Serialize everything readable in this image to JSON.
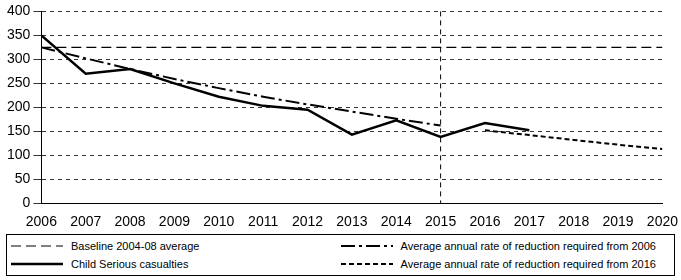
{
  "chart_data": {
    "type": "line",
    "x": [
      2006,
      2007,
      2008,
      2009,
      2010,
      2011,
      2012,
      2013,
      2014,
      2015,
      2016,
      2017,
      2018,
      2019,
      2020
    ],
    "series": [
      {
        "name": "Baseline 2004-08 average",
        "color": "#000000",
        "line_style": "dashed",
        "values": [
          325,
          325,
          325,
          325,
          325,
          325,
          325,
          325,
          325,
          325,
          325,
          325,
          325,
          325,
          325
        ]
      },
      {
        "name": "Average annual rate of reduction required from 2006",
        "color": "#000000",
        "line_style": "dashdot",
        "values": [
          325,
          302,
          280,
          259,
          240,
          222,
          206,
          191,
          176,
          162,
          null,
          null,
          null,
          null,
          null
        ]
      },
      {
        "name": "Child Serious casualties",
        "color": "#000000",
        "line_style": "solid",
        "values": [
          350,
          270,
          280,
          250,
          222,
          203,
          195,
          143,
          173,
          138,
          167,
          152,
          null,
          null,
          null
        ]
      },
      {
        "name": "Average annual rate of reduction required from 2016",
        "color": "#000000",
        "line_style": "dotted",
        "values": [
          null,
          null,
          null,
          null,
          null,
          null,
          null,
          null,
          null,
          null,
          152,
          142,
          132,
          122,
          113
        ]
      }
    ],
    "vline_x": 2015,
    "xlim": [
      2006,
      2020
    ],
    "xticks": [
      2006,
      2007,
      2008,
      2009,
      2010,
      2011,
      2012,
      2013,
      2014,
      2015,
      2016,
      2017,
      2018,
      2019,
      2020
    ],
    "ylim": [
      0,
      400
    ],
    "yticks": [
      0,
      50,
      100,
      150,
      200,
      250,
      300,
      350,
      400
    ],
    "grid": true
  }
}
